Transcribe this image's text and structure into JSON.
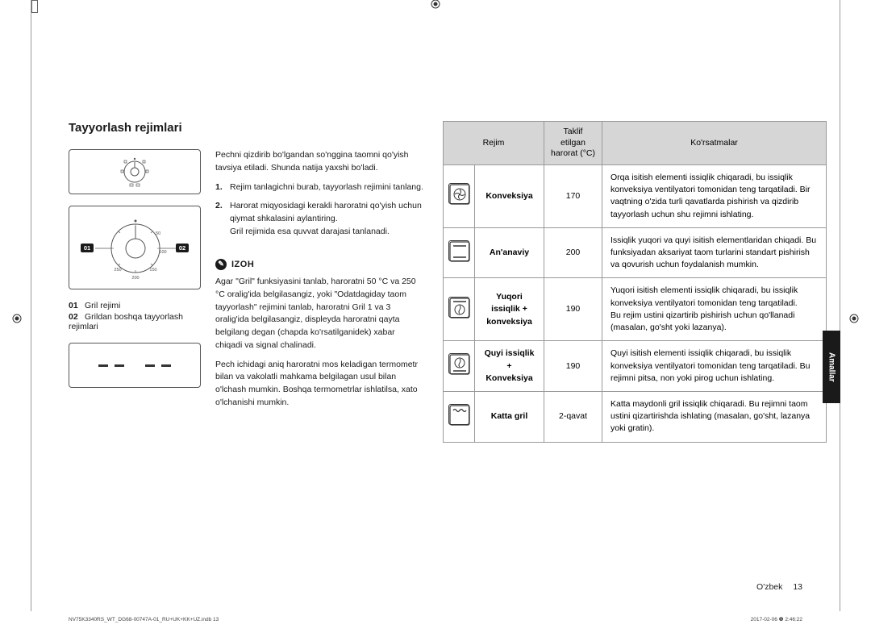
{
  "section_title": "Tayyorlash rejimlari",
  "intro": "Pechni qizdirib bo'lgandan so'nggina taomni qo'yish tavsiya etiladi. Shunda natija yaxshi bo'ladi.",
  "steps": [
    {
      "num": "1.",
      "text": "Rejim tanlagichni burab, tayyorlash rejimini tanlang."
    },
    {
      "num": "2.",
      "text": "Harorat miqyosidagi kerakli haroratni qo'yish uchun qiymat shkalasini aylantiring.\nGril rejimida esa quvvat darajasi tanlanadi."
    }
  ],
  "legend": [
    {
      "num": "01",
      "label": "Gril rejimi"
    },
    {
      "num": "02",
      "label": "Grildan boshqa tayyorlash rejimlari"
    }
  ],
  "note": {
    "title": "IZOH",
    "p1": "Agar \"Gril\" funksiyasini tanlab, haroratni 50 °C va 250 °C oralig'ida belgilasangiz, yoki \"Odatdagiday taom tayyorlash\" rejimini tanlab, haroratni Gril 1 va 3 oralig'ida belgilasangiz, displeyda haroratni qayta belgilang degan (chapda ko'rsatilganidek) xabar chiqadi va signal chalinadi.",
    "p2": "Pech ichidagi aniq haroratni mos keladigan termometr bilan va vakolatli mahkama belgilagan usul bilan o'lchash mumkin. Boshqa termometrlar ishlatilsa, xato o'lchanishi mumkin."
  },
  "table": {
    "headers": [
      "Rejim",
      "Taklif etilgan\nharorat (°C)",
      "Ko'rsatmalar"
    ],
    "rows": [
      {
        "icon": "convection",
        "mode": "Konveksiya",
        "temp": "170",
        "desc": "Orqa isitish elementi issiqlik chiqaradi, bu issiqlik konveksiya ventilyatori tomonidan teng tarqatiladi. Bir vaqtning o'zida turli qavatlarda pishirish va qizdirib tayyorlash uchun shu rejimni ishlating."
      },
      {
        "icon": "conventional",
        "mode": "An'anaviy",
        "temp": "200",
        "desc": "Issiqlik yuqori va quyi isitish elementlaridan chiqadi. Bu funksiyadan aksariyat taom turlarini standart pishirish va qovurish uchun foydalanish mumkin."
      },
      {
        "icon": "top-convection",
        "mode": "Yuqori issiqlik + konveksiya",
        "temp": "190",
        "desc": "Yuqori isitish elementi issiqlik chiqaradi, bu issiqlik konveksiya ventilyatori tomonidan teng tarqatiladi.\nBu rejim ustini qizartirib pishirish uchun qo'llanadi (masalan, go'sht yoki lazanya)."
      },
      {
        "icon": "bottom-convection",
        "mode": "Quyi issiqlik + Konveksiya",
        "temp": "190",
        "desc": "Quyi isitish elementi issiqlik chiqaradi, bu issiqlik konveksiya ventilyatori tomonidan teng tarqatiladi. Bu rejimni pitsa, non yoki pirog uchun ishlating."
      },
      {
        "icon": "large-grill",
        "mode": "Katta gril",
        "temp": "2-qavat",
        "desc": "Katta maydonli gril issiqlik chiqaradi. Bu rejimni taom ustini qizartirishda ishlating (masalan, go'sht, lazanya yoki gratin)."
      }
    ]
  },
  "side_tab": "Amallar",
  "footer_lang": "O'zbek",
  "footer_page": "13",
  "meta_left": "NV75K3340RS_WT_DG68-00747A-01_RU+UK+KK+UZ.indb   13",
  "meta_right": "2017-02-06   ❶ 2:46:22",
  "temp_dial": {
    "values": [
      "50",
      "100",
      "150",
      "200",
      "250"
    ],
    "callouts": [
      "01",
      "02"
    ]
  }
}
